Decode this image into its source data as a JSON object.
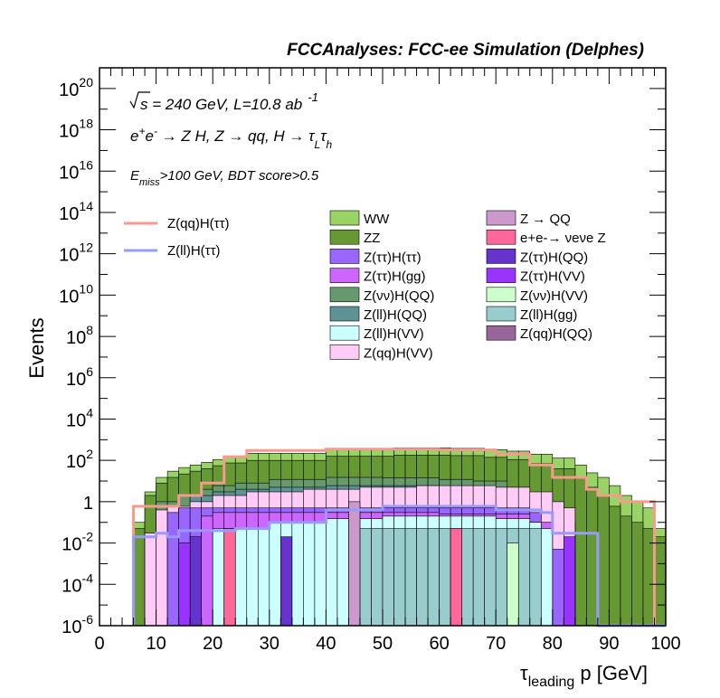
{
  "chart_data": {
    "type": "bar",
    "stacked": true,
    "title": "FCCAnalyses: FCC-ee Simulation (Delphes)",
    "xlabel": "τ",
    "xlabel_sub": "leading",
    "xlabel_rest": " p [GeV]",
    "ylabel": "Events",
    "x_range": [
      0,
      100
    ],
    "y_scale": "log",
    "ylim": [
      1e-06,
      1e+21
    ],
    "bin_width": 2,
    "x_tick_labels": [
      "0",
      "10",
      "20",
      "30",
      "40",
      "50",
      "60",
      "70",
      "80",
      "90",
      "100"
    ],
    "y_tick_labels": [
      {
        "value": 1e+20,
        "base": "10",
        "exp": "20"
      },
      {
        "value": 1e+18,
        "base": "10",
        "exp": "18"
      },
      {
        "value": 1e+16,
        "base": "10",
        "exp": "16"
      },
      {
        "value": 100000000000000.0,
        "base": "10",
        "exp": "14"
      },
      {
        "value": 1000000000000.0,
        "base": "10",
        "exp": "12"
      },
      {
        "value": 10000000000.0,
        "base": "10",
        "exp": "10"
      },
      {
        "value": 100000000.0,
        "base": "10",
        "exp": "8"
      },
      {
        "value": 1000000.0,
        "base": "10",
        "exp": "6"
      },
      {
        "value": 10000.0,
        "base": "10",
        "exp": "4"
      },
      {
        "value": 100.0,
        "base": "10",
        "exp": "2"
      },
      {
        "value": 1,
        "base": "1",
        "exp": ""
      },
      {
        "value": 0.01,
        "base": "10",
        "exp": "-2"
      },
      {
        "value": 0.0001,
        "base": "10",
        "exp": "-4"
      },
      {
        "value": 1e-06,
        "base": "10",
        "exp": "-6"
      }
    ],
    "annotations": [
      {
        "id": "sqrt-s",
        "prefix": "s",
        "text": " = 240 GeV, L=10.8 ab",
        "sup": "-1"
      },
      {
        "id": "process",
        "text": "e+e- → Z H, Z → qq, H → τLτh"
      },
      {
        "id": "cuts",
        "text": "Emiss>100 GeV, BDT score>0.5"
      }
    ],
    "legend_placement": "top",
    "line_series": [
      {
        "name": "Z(qq)H(ττ)",
        "color": "#f79a8e",
        "bins": [
          [
            6,
            0.6
          ],
          [
            14,
            2
          ],
          [
            18,
            8
          ],
          [
            22,
            150
          ],
          [
            26,
            300
          ],
          [
            40,
            350
          ],
          [
            60,
            320
          ],
          [
            70,
            200
          ],
          [
            76,
            60
          ],
          [
            80,
            15
          ],
          [
            86,
            4
          ],
          [
            88,
            2
          ],
          [
            92,
            1
          ],
          [
            98,
            1e-06
          ]
        ]
      },
      {
        "name": "Z(ll)H(ττ)",
        "color": "#9999ff",
        "bins": [
          [
            6,
            0.02
          ],
          [
            10,
            0.03
          ],
          [
            12,
            0.02
          ],
          [
            14,
            0.04
          ],
          [
            24,
            0.05
          ],
          [
            30,
            0.1
          ],
          [
            40,
            0.4
          ],
          [
            50,
            0.6
          ],
          [
            70,
            0.4
          ],
          [
            78,
            0.3
          ],
          [
            80,
            0.03
          ],
          [
            88,
            1e-06
          ]
        ]
      }
    ],
    "stack_series": [
      {
        "name": "WW",
        "color": "#99d366",
        "bins": [
          [
            4,
            1e-06
          ],
          [
            6,
            0.1
          ],
          [
            8,
            3
          ],
          [
            10,
            15
          ],
          [
            12,
            30
          ],
          [
            14,
            45
          ],
          [
            16,
            60
          ],
          [
            18,
            80
          ],
          [
            20,
            110
          ],
          [
            22,
            160
          ],
          [
            26,
            220
          ],
          [
            40,
            350
          ],
          [
            52,
            400
          ],
          [
            62,
            380
          ],
          [
            68,
            330
          ],
          [
            72,
            280
          ],
          [
            76,
            200
          ],
          [
            80,
            130
          ],
          [
            84,
            60
          ],
          [
            86,
            25
          ],
          [
            88,
            15
          ],
          [
            90,
            6
          ],
          [
            92,
            2
          ],
          [
            94,
            1
          ],
          [
            96,
            0.5
          ],
          [
            98,
            0.05
          ],
          [
            100,
            0.05
          ]
        ]
      },
      {
        "name": "ZZ",
        "color": "#669933",
        "bins": [
          [
            4,
            1e-06
          ],
          [
            6,
            0.05
          ],
          [
            8,
            2
          ],
          [
            10,
            8
          ],
          [
            12,
            15
          ],
          [
            14,
            22
          ],
          [
            16,
            30
          ],
          [
            18,
            40
          ],
          [
            20,
            55
          ],
          [
            22,
            75
          ],
          [
            26,
            100
          ],
          [
            40,
            160
          ],
          [
            52,
            180
          ],
          [
            62,
            170
          ],
          [
            68,
            140
          ],
          [
            72,
            110
          ],
          [
            76,
            70
          ],
          [
            80,
            40
          ],
          [
            84,
            15
          ],
          [
            86,
            5
          ],
          [
            88,
            2
          ],
          [
            90,
            0.6
          ],
          [
            92,
            0.2
          ],
          [
            94,
            0.1
          ],
          [
            96,
            0.05
          ],
          [
            98,
            0.02
          ]
        ]
      },
      {
        "name": "Z(νν)H(QQ)",
        "color": "#66996b",
        "bins": [
          [
            6,
            1e-06
          ],
          [
            10,
            1
          ],
          [
            14,
            2
          ],
          [
            18,
            4
          ],
          [
            20,
            6
          ],
          [
            24,
            8
          ],
          [
            30,
            12
          ],
          [
            40,
            15
          ],
          [
            50,
            14
          ],
          [
            60,
            12
          ],
          [
            66,
            10
          ],
          [
            72,
            5
          ],
          [
            76,
            2
          ],
          [
            80,
            0.5
          ],
          [
            82,
            0.1
          ],
          [
            84,
            1e-06
          ]
        ]
      },
      {
        "name": "Z(ll)H(QQ)",
        "color": "#5e9396",
        "bins": [
          [
            10,
            1e-06
          ],
          [
            12,
            0.5
          ],
          [
            16,
            2
          ],
          [
            20,
            3
          ],
          [
            24,
            4
          ],
          [
            30,
            5
          ],
          [
            40,
            6
          ],
          [
            50,
            6
          ],
          [
            60,
            5
          ],
          [
            70,
            3
          ],
          [
            76,
            1
          ],
          [
            78,
            0.5
          ],
          [
            80,
            0.2
          ],
          [
            82,
            0.1
          ],
          [
            84,
            1e-06
          ]
        ]
      },
      {
        "name": "Z(qq)H(VV)",
        "color": "#ffccf7",
        "bins": [
          [
            6,
            1e-06
          ],
          [
            8,
            0.03
          ],
          [
            10,
            0.4
          ],
          [
            12,
            0.6
          ],
          [
            16,
            1
          ],
          [
            20,
            2
          ],
          [
            26,
            3
          ],
          [
            36,
            4
          ],
          [
            46,
            5
          ],
          [
            56,
            6
          ],
          [
            64,
            6
          ],
          [
            70,
            5
          ],
          [
            76,
            3
          ],
          [
            80,
            1
          ],
          [
            82,
            0.5
          ],
          [
            84,
            1e-06
          ]
        ]
      },
      {
        "name": "Z(ττ)H(ττ)",
        "color": "#9966ff",
        "bins": [
          [
            10,
            1e-06
          ],
          [
            12,
            0.3
          ],
          [
            14,
            0.5
          ],
          [
            20,
            0.5
          ],
          [
            40,
            0.5
          ],
          [
            60,
            0.5
          ],
          [
            76,
            0.3
          ],
          [
            78,
            0.1
          ],
          [
            80,
            0.005
          ],
          [
            84,
            1e-06
          ]
        ]
      },
      {
        "name": "Z(ττ)H(gg)",
        "color": "#cc66ff",
        "bins": [
          [
            16,
            1e-06
          ],
          [
            18,
            0.2
          ],
          [
            20,
            0.3
          ],
          [
            40,
            0.3
          ],
          [
            60,
            0.25
          ],
          [
            76,
            0.1
          ],
          [
            80,
            1e-06
          ]
        ]
      },
      {
        "name": "Z(ll)H(VV)",
        "color": "#ccffff",
        "bins": [
          [
            18,
            1e-06
          ],
          [
            20,
            0.05
          ],
          [
            30,
            0.1
          ],
          [
            40,
            0.15
          ],
          [
            50,
            0.2
          ],
          [
            70,
            0.15
          ],
          [
            76,
            0.1
          ],
          [
            78,
            0.05
          ],
          [
            80,
            1e-06
          ]
        ]
      },
      {
        "name": "Z(ll)H(gg)",
        "color": "#99cccc",
        "bins": [
          [
            44,
            1e-06
          ],
          [
            46,
            0.05
          ],
          [
            76,
            0.05
          ],
          [
            78,
            1e-06
          ]
        ]
      },
      {
        "name": "Z → QQ",
        "color": "#cc99cc",
        "bins": [
          [
            42,
            1e-06
          ],
          [
            44,
            1
          ],
          [
            46,
            1e-06
          ]
        ]
      },
      {
        "name": "e+e-→ νeνe Z",
        "color": "#ff6699",
        "bins": [
          [
            20,
            1e-06
          ],
          [
            22,
            0.05
          ],
          [
            24,
            1e-06
          ],
          [
            60,
            1e-06
          ],
          [
            62,
            0.05
          ],
          [
            64,
            1e-06
          ]
        ]
      },
      {
        "name": "Z(ττ)H(QQ)",
        "color": "#6633cc",
        "bins": [
          [
            14,
            1e-06
          ],
          [
            16,
            0.02
          ],
          [
            18,
            1e-06
          ],
          [
            30,
            1e-06
          ],
          [
            32,
            0.02
          ],
          [
            34,
            1e-06
          ]
        ]
      },
      {
        "name": "Z(ττ)H(VV)",
        "color": "#9933ff",
        "bins": [
          [
            12,
            1e-06
          ],
          [
            14,
            0.01
          ],
          [
            16,
            1e-06
          ],
          [
            80,
            1e-06
          ],
          [
            82,
            0.02
          ],
          [
            84,
            1e-06
          ]
        ]
      },
      {
        "name": "Z(νν)H(VV)",
        "color": "#ccffcc",
        "bins": [
          [
            70,
            1e-06
          ],
          [
            72,
            0.01
          ],
          [
            74,
            1e-06
          ]
        ]
      },
      {
        "name": "Z(qq)H(QQ)",
        "color": "#996699",
        "bins": [
          [
            76,
            1e-06
          ],
          [
            78,
            1e-06
          ]
        ]
      }
    ],
    "legend_columns": [
      [
        "WW",
        "ZZ",
        "Z(ττ)H(ττ)",
        "Z(ττ)H(gg)",
        "Z(νν)H(QQ)",
        "Z(ll)H(QQ)",
        "Z(ll)H(VV)",
        "Z(qq)H(VV)"
      ],
      [
        "Z → QQ",
        "e+e-→ νeνe Z",
        "Z(ττ)H(QQ)",
        "Z(ττ)H(VV)",
        "Z(νν)H(VV)",
        "Z(ll)H(gg)",
        "Z(qq)H(QQ)"
      ]
    ]
  }
}
